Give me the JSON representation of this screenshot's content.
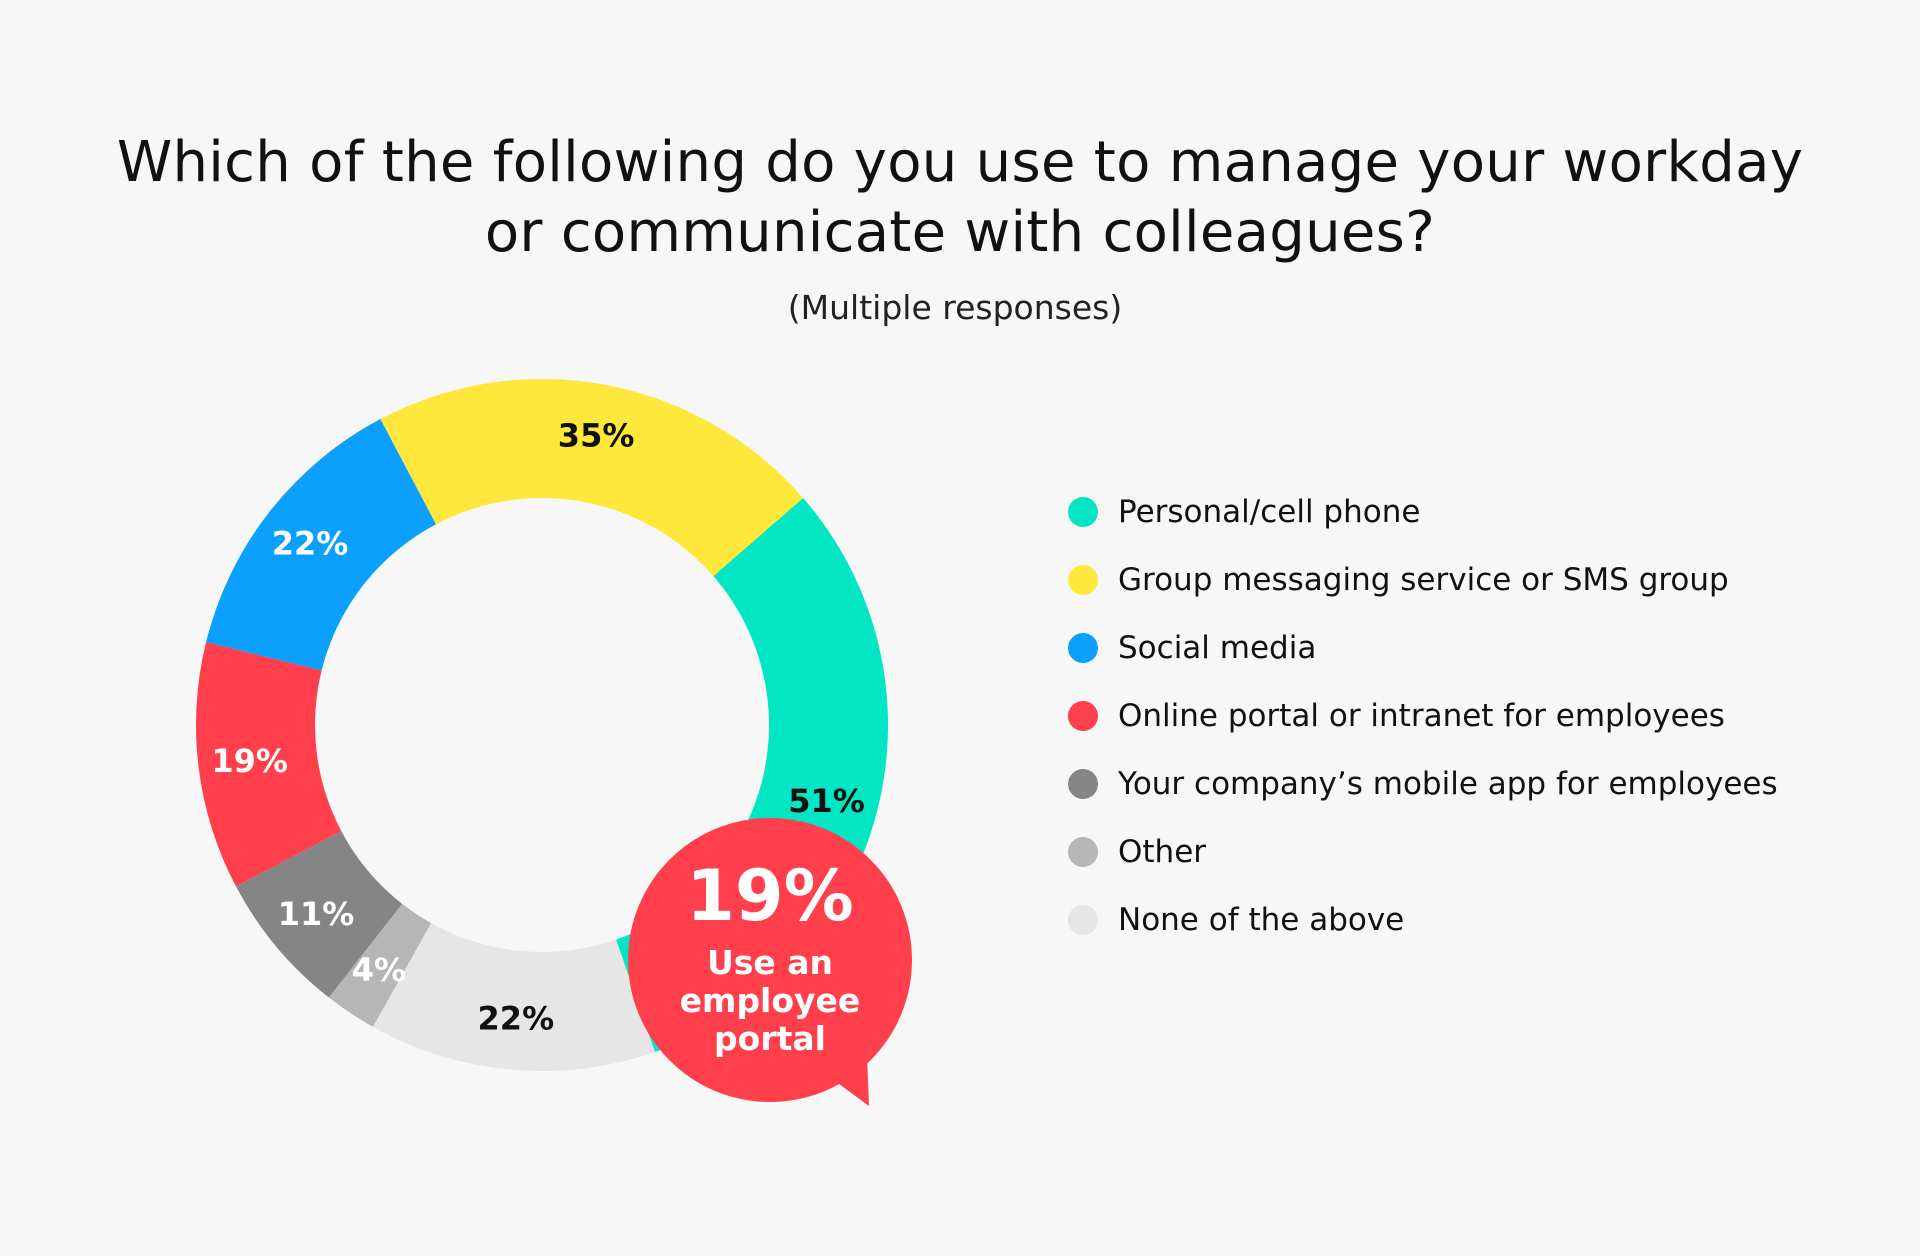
{
  "title_lines": [
    "Which of the following do you use to manage your workday",
    "or communicate with colleagues?"
  ],
  "subtitle": "(Multiple responses)",
  "chart_data": {
    "type": "pie",
    "variant": "donut",
    "title": "Which of the following do you use to manage your workday or communicate with colleagues?",
    "subtitle": "(Multiple responses)",
    "legend_position": "right",
    "slices": [
      {
        "name": "Personal/cell phone",
        "label": "51%",
        "value": 51,
        "color": "#02e6c3",
        "label_color": "#111111"
      },
      {
        "name": "None of the above",
        "label": "22%",
        "value": 22,
        "color": "#e6e6e6",
        "label_color": "#111111"
      },
      {
        "name": "Other",
        "label": "4%",
        "value": 4,
        "color": "#b6b6b6",
        "label_color": "#ffffff"
      },
      {
        "name": "Your company’s mobile app for employees",
        "label": "11%",
        "value": 11,
        "color": "#858585",
        "label_color": "#ffffff"
      },
      {
        "name": "Online portal or intranet for employees",
        "label": "19%",
        "value": 19,
        "color": "#ff3f4b",
        "label_color": "#ffffff"
      },
      {
        "name": "Social media",
        "label": "22%",
        "value": 22,
        "color": "#0ba0fd",
        "label_color": "#ffffff"
      },
      {
        "name": "Group messaging service or SMS group",
        "label": "35%",
        "value": 35,
        "color": "#ffe73b",
        "label_color": "#111111"
      }
    ],
    "legend_order": [
      "Personal/cell phone",
      "Group messaging service or SMS group",
      "Social media",
      "Online portal or intranet for employees",
      "Your company’s mobile app for employees",
      "Other",
      "None of the above"
    ],
    "callout": {
      "value": "19%",
      "text_lines": [
        "Use an",
        "employee",
        "portal"
      ],
      "color": "#ff3f4b",
      "refers_to": "Online portal or intranet for employees"
    }
  }
}
